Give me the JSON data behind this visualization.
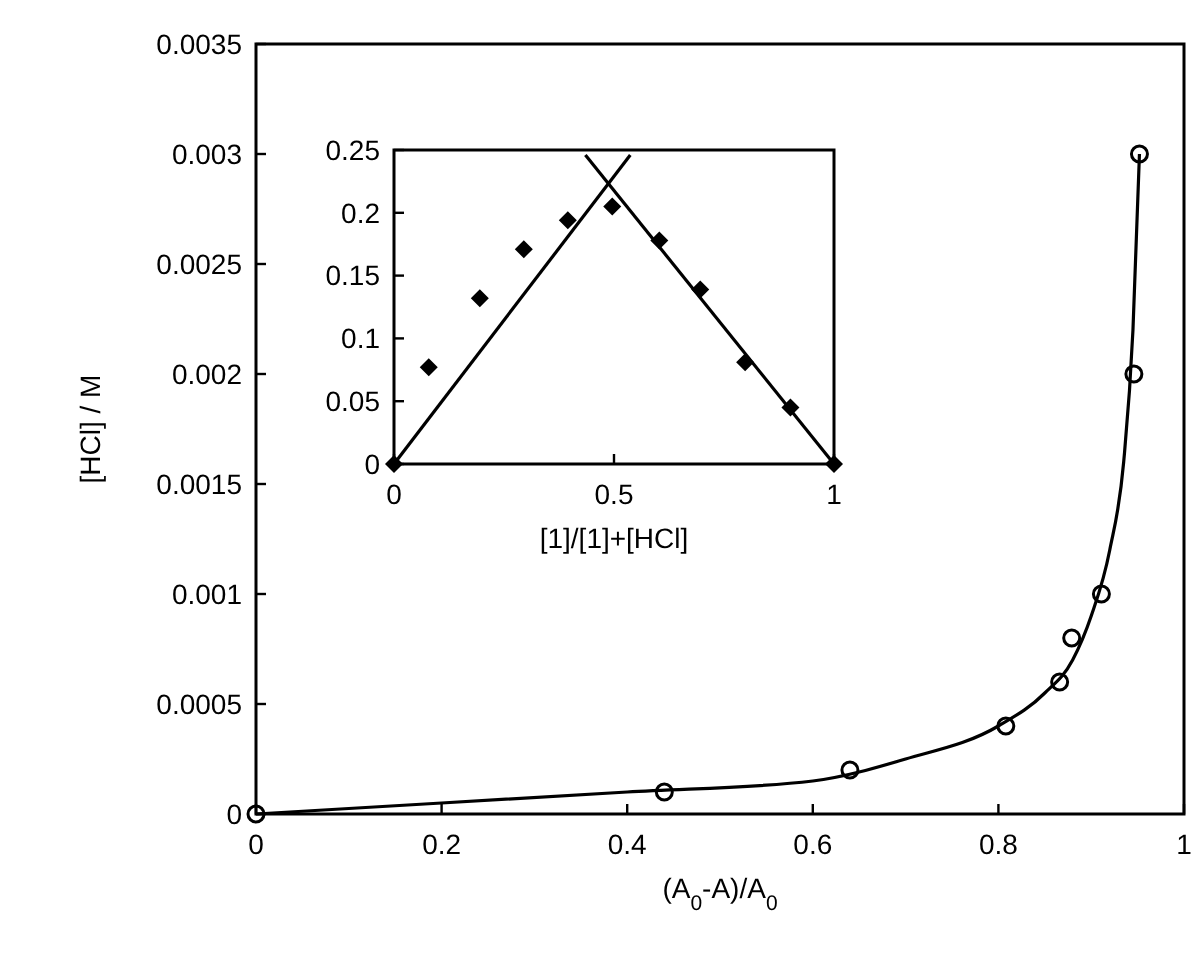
{
  "chart_data": [
    {
      "type": "scatter",
      "xlabel": "(A$_{0}$-A)/A$_{0}$",
      "ylabel": "[HCl] / M",
      "xlim": [
        0,
        1
      ],
      "ylim": [
        0,
        0.0035
      ],
      "xticks": [
        0,
        0.2,
        0.4,
        0.6,
        0.8,
        1
      ],
      "yticks": [
        0,
        0.0005,
        0.001,
        0.0015,
        0.002,
        0.0025,
        0.003,
        0.0035
      ],
      "grid": false,
      "series": [
        {
          "marker": "circle",
          "color": "#000000",
          "x": [
            0,
            0.44,
            0.64,
            0.808,
            0.866,
            0.879,
            0.911,
            0.946,
            0.952
          ],
          "values": [
            0,
            0.0001,
            0.0002,
            0.0004,
            0.0006,
            0.0008,
            0.001,
            0.002,
            0.003
          ]
        },
        {
          "type": "line",
          "marker": "none",
          "line_style": "solid",
          "color": "#000000",
          "x": [
            0,
            0.4,
            0.6,
            0.7,
            0.8,
            0.85,
            0.88,
            0.9,
            0.92,
            0.935,
            0.945,
            0.952
          ],
          "values": [
            0,
            0.0001,
            0.00015,
            0.00025,
            0.0004,
            0.00055,
            0.0007,
            0.0009,
            0.0012,
            0.0016,
            0.0022,
            0.003
          ]
        }
      ]
    },
    {
      "type": "scatter",
      "xlabel": "[1]/[1]+[HCl]",
      "xlim": [
        0,
        1
      ],
      "ylim": [
        0,
        0.25
      ],
      "xticks": [
        0,
        0.5,
        1
      ],
      "yticks": [
        0,
        0.05,
        0.1,
        0.15,
        0.2,
        0.25
      ],
      "grid": false,
      "series": [
        {
          "marker": "diamond",
          "color": "#000000",
          "x": [
            0,
            0.079,
            0.195,
            0.295,
            0.395,
            0.496,
            0.603,
            0.696,
            0.798,
            0.901,
            1
          ],
          "values": [
            0,
            0.077,
            0.132,
            0.171,
            0.194,
            0.205,
            0.178,
            0.139,
            0.081,
            0.045,
            0
          ]
        },
        {
          "type": "line",
          "marker": "none",
          "line_style": "solid",
          "color": "#000000",
          "x": [
            0,
            0.537
          ],
          "values": [
            0,
            0.246
          ]
        },
        {
          "type": "line",
          "marker": "none",
          "line_style": "solid",
          "color": "#000000",
          "x": [
            0.435,
            1
          ],
          "values": [
            0.246,
            0
          ]
        }
      ]
    }
  ]
}
